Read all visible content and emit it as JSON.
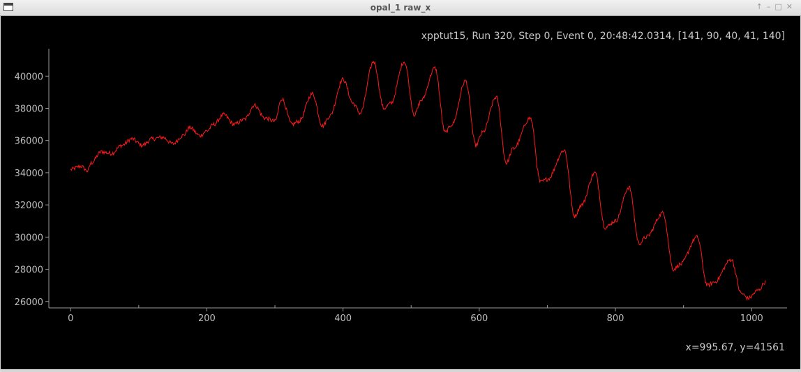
{
  "window": {
    "title": "opal_1 raw_x",
    "icon": "window-icon",
    "controls": [
      "↑",
      "–",
      "□",
      "✕"
    ]
  },
  "header_text": "xpptut15, Run 320, Step 0, Event 0, 20:48:42.0314, [141, 90, 40, 41, 140]",
  "cursor_readout": "x=995.67, y=41561",
  "chart_data": {
    "type": "line",
    "title": "",
    "xlabel": "",
    "ylabel": "",
    "xlim": [
      -32,
      1052
    ],
    "ylim": [
      25600,
      41700
    ],
    "xticks": [
      0,
      200,
      400,
      600,
      800,
      1000
    ],
    "yticks": [
      26000,
      28000,
      30000,
      32000,
      34000,
      36000,
      38000,
      40000
    ],
    "grid": false,
    "line_color": "#ff1a1a",
    "series": [
      {
        "x": [
          0,
          15,
          25,
          30,
          45,
          60,
          75,
          90,
          105,
          120,
          135,
          150,
          165,
          175,
          190,
          200,
          210,
          225,
          240,
          255,
          270,
          285,
          300,
          310,
          325,
          335,
          355,
          370,
          380,
          400,
          415,
          425,
          445,
          460,
          470,
          490,
          505,
          515,
          535,
          550,
          560,
          580,
          595,
          605,
          625,
          640,
          650,
          675,
          690,
          700,
          725,
          740,
          750,
          770,
          785,
          800,
          820,
          835,
          845,
          870,
          885,
          895,
          920,
          935,
          945,
          970,
          985,
          995,
          1010,
          1020
        ],
        "y": [
          34200,
          34400,
          34100,
          34600,
          35300,
          35200,
          35700,
          36100,
          35700,
          36100,
          36200,
          35800,
          36300,
          36800,
          36300,
          36600,
          37000,
          37600,
          37000,
          37300,
          38200,
          37400,
          37200,
          38600,
          37000,
          37200,
          38900,
          36900,
          37500,
          39800,
          38300,
          37700,
          40900,
          38000,
          38300,
          40900,
          37600,
          38500,
          40500,
          36500,
          37000,
          39700,
          35700,
          36500,
          38700,
          34600,
          35500,
          37400,
          33400,
          33600,
          35400,
          31300,
          32000,
          34000,
          30600,
          31000,
          33100,
          29600,
          30000,
          31500,
          28000,
          28300,
          30000,
          27000,
          27200,
          28600,
          26500,
          26200,
          26700,
          27200
        ]
      }
    ]
  }
}
